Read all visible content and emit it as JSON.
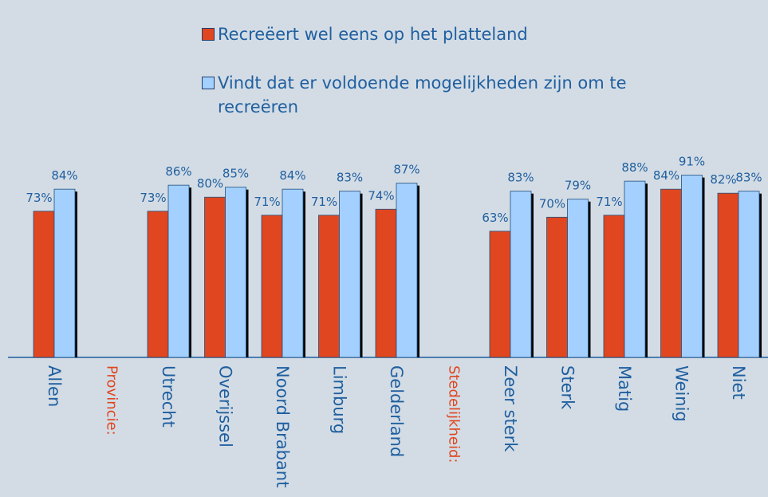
{
  "chart_data": {
    "type": "bar",
    "categories": [
      "Allen",
      "Provincie:",
      "Utrecht",
      "Overijssel",
      "Noord Brabant",
      "Limburg",
      "Gelderland",
      "Stedelijkheid:",
      "Zeer sterk",
      "Sterk",
      "Matig",
      "Weinig",
      "Niet"
    ],
    "series": [
      {
        "name": "Recreëert wel eens op het platteland",
        "color": "#e0461f",
        "values": [
          73,
          null,
          73,
          80,
          71,
          71,
          74,
          null,
          63,
          70,
          71,
          84,
          82
        ],
        "value_labels": [
          "73%",
          null,
          "73%",
          "80%",
          "71%",
          "71%",
          "74%",
          null,
          "63%",
          "70%",
          "71%",
          "84%",
          "82%"
        ]
      },
      {
        "name": "Vindt dat er voldoende mogelijkheden zijn om te recreëren",
        "color": "#a3d0ff",
        "values": [
          84,
          null,
          86,
          85,
          84,
          83,
          87,
          null,
          83,
          79,
          88,
          91,
          83
        ],
        "value_labels": [
          "84%",
          null,
          "86%",
          "85%",
          "84%",
          "83%",
          "87%",
          null,
          "83%",
          "79%",
          "88%",
          "91%",
          "83%"
        ]
      }
    ],
    "ylim": [
      0,
      100
    ],
    "legend": "top"
  }
}
